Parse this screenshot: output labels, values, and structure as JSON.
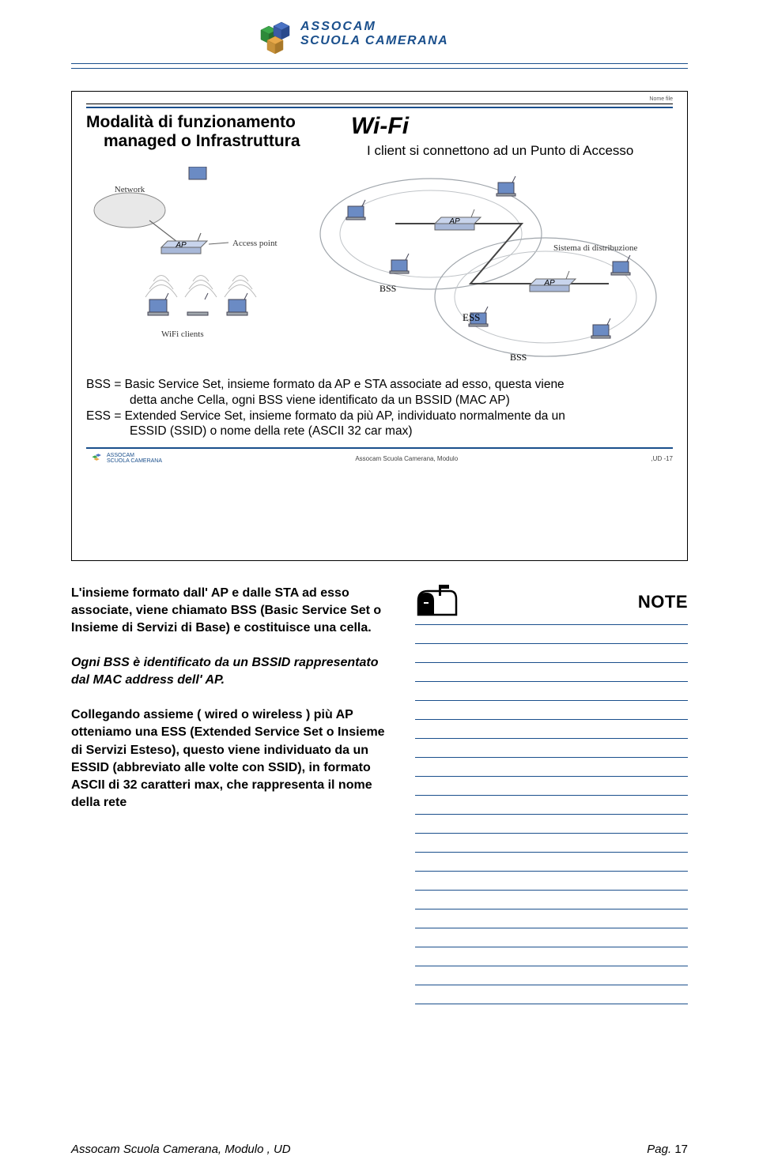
{
  "colors": {
    "primary_blue": "#1a4f8c",
    "text": "#000000",
    "muted": "#555555",
    "background": "#ffffff",
    "diagram_gray": "#a0a6ac",
    "device_blue": "#6b8bc4"
  },
  "header_logo": {
    "line1": "ASSOCAM",
    "line2": "SCUOLA CAMERANA"
  },
  "slide": {
    "nomefile_label": "Nome file",
    "heading_line1": "Modalità di funzionamento",
    "heading_line2": "managed o Infrastruttura",
    "wifi_title": "Wi-Fi",
    "subtitle": "I client si connettono ad un Punto di Accesso",
    "diagram_left": {
      "labels": {
        "network": "Network",
        "ap": "AP",
        "access_point": "Access point",
        "wifi_clients": "WiFi clients"
      }
    },
    "diagram_right": {
      "labels": {
        "ap": "AP",
        "system": "Sistema di distribuzione",
        "bss_top": "BSS",
        "bss_bottom": "BSS",
        "ess": "ESS"
      }
    },
    "definitions": {
      "bss_line1": "BSS = Basic Service Set, insieme formato da AP e STA associate ad esso, questa viene",
      "bss_line2": "detta anche Cella, ogni BSS viene identificato da un BSSID (MAC AP)",
      "ess_line1": "ESS = Extended Service Set, insieme formato da più AP, individuato normalmente da un",
      "ess_line2": "ESSID (SSID) o nome della rete (ASCII 32 car max)"
    },
    "footer_center": "Assocam Scuola Camerana, Modulo",
    "footer_right": ",UD -17"
  },
  "notes": {
    "mailbox_icon_name": "mailbox-icon",
    "label": "NOTE",
    "p1": "L'insieme formato dall' AP e dalle STA ad esso associate, viene chiamato BSS (Basic Service Set o  Insieme di Servizi di Base) e costituisce una cella.",
    "p2": "Ogni BSS è identificato da un BSSID rappresentato dal MAC address dell' AP.",
    "p3": "Collegando assieme ( wired o wireless ) più AP otteniamo una ESS (Extended Service Set o Insieme di Servizi Esteso), questo viene individuato da un ESSID (abbreviato alle volte con SSID), in formato ASCII di 32 caratteri max, che rappresenta il nome della rete",
    "line_count": 21,
    "line_color": "#1a4f8c"
  },
  "page_footer": {
    "left": "Assocam Scuola Camerana, Modulo       , UD",
    "right_label": "Pag.",
    "right_num": "17"
  }
}
